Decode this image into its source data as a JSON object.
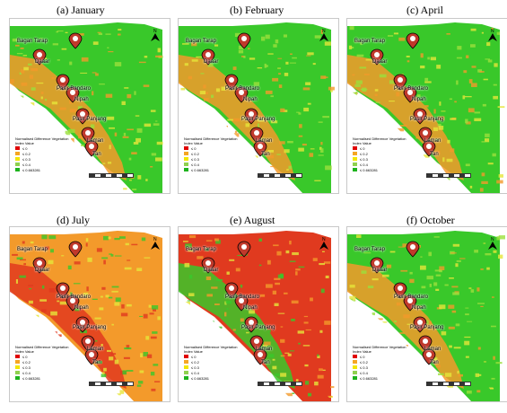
{
  "panels": [
    {
      "title": "(a)  January",
      "tone": "green"
    },
    {
      "title": "(b)  February",
      "tone": "green"
    },
    {
      "title": "(c)  April",
      "tone": "green"
    },
    {
      "title": "(d)  July",
      "tone": "orange"
    },
    {
      "title": "(e)  August",
      "tone": "red"
    },
    {
      "title": "(f)  October",
      "tone": "green"
    }
  ],
  "places": [
    "Bagan Tarap",
    "Daaar",
    "Pasir Bandaro",
    "Nipah",
    "Pasir Panjang",
    "Laman",
    "Tan"
  ],
  "legend": {
    "title_line1": "Normalised Difference Vegetation",
    "title_line2": "Index Value",
    "items": [
      {
        "label": "≤ 0",
        "color": "#e00000"
      },
      {
        "label": "≤ 0.2",
        "color": "#f5a623"
      },
      {
        "label": "≤ 0.3",
        "color": "#f2e600"
      },
      {
        "label": "≤ 0.4",
        "color": "#8fd14f"
      },
      {
        "label": "≤ 0.663281",
        "color": "#1db31d"
      }
    ]
  },
  "north_label": "N",
  "colors": {
    "green": "#39c82a",
    "lightgreen": "#9be03c",
    "yellow": "#e6e63a",
    "orange": "#f39a2b",
    "red": "#e03a1f",
    "sea": "#ffffff"
  }
}
